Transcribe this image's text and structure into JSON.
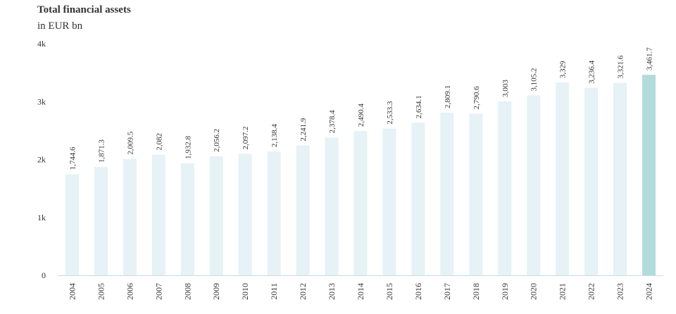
{
  "chart_data": {
    "type": "bar",
    "title": "Total financial assets",
    "subtitle": "in EUR bn",
    "categories": [
      "2004",
      "2005",
      "2006",
      "2007",
      "2008",
      "2009",
      "2010",
      "2011",
      "2012",
      "2013",
      "2014",
      "2015",
      "2016",
      "2017",
      "2018",
      "2019",
      "2020",
      "2021",
      "2022",
      "2023",
      "2024"
    ],
    "values": [
      1744.6,
      1871.3,
      2009.5,
      2082,
      1932.8,
      2056.2,
      2097.2,
      2138.4,
      2241.9,
      2378.4,
      2490.4,
      2533.3,
      2634.1,
      2809.1,
      2790.6,
      3003,
      3105.2,
      3329,
      3236.4,
      3321.6,
      3461.7
    ],
    "value_labels": [
      "1,744.6",
      "1,871.3",
      "2,009.5",
      "2,082",
      "1,932.8",
      "2,056.2",
      "2,097.2",
      "2,138.4",
      "2,241.9",
      "2,378.4",
      "2,490.4",
      "2,533.3",
      "2,634.1",
      "2,809.1",
      "2,790.6",
      "3,003",
      "3,105.2",
      "3,329",
      "3,236.4",
      "3,321.6",
      "3,461.7"
    ],
    "ylim": [
      0,
      4000
    ],
    "yticks": [
      0,
      1000,
      2000,
      3000,
      4000
    ],
    "ytick_labels": [
      "0",
      "1k",
      "2k",
      "3k",
      "4k"
    ],
    "grid": false,
    "colors": {
      "bar": "#e6f2f5",
      "highlight": "#b2dbdc",
      "axis": "#c5dfe4"
    },
    "highlight_category": "2024"
  }
}
